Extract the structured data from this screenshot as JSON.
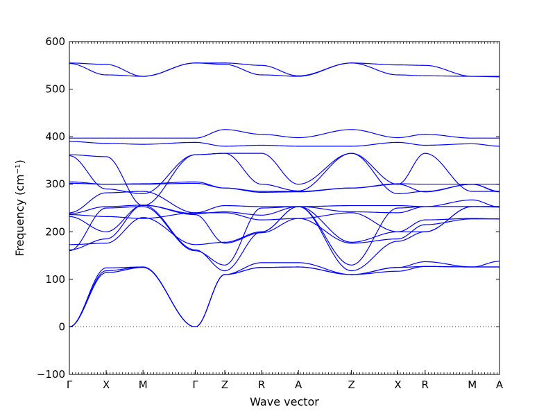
{
  "chart_data": {
    "type": "line",
    "xlabel": "Wave vector",
    "ylabel": "Frequency (cm⁻¹)",
    "ylim": [
      -100,
      600
    ],
    "y_ticks": [
      -100,
      0,
      100,
      200,
      300,
      400,
      500,
      600
    ],
    "zero_line": "dotted",
    "grid": false,
    "x_path_points": [
      "Γ",
      "X",
      "M",
      "Γ",
      "Z",
      "R",
      "A",
      "Z",
      "X",
      "R",
      "M",
      "A"
    ],
    "x_path_positions": [
      0.0,
      0.5,
      1.0,
      1.71,
      2.11,
      2.61,
      3.11,
      3.83,
      4.46,
      4.83,
      5.47,
      5.84
    ],
    "line_color": "#0000ff",
    "series": [
      {
        "x": [
          0,
          0.5,
          1,
          1.71,
          2.11,
          2.61,
          3.11,
          3.83,
          4.46,
          4.83,
          5.47,
          5.84
        ],
        "y": [
          555,
          552,
          527,
          555,
          555,
          550,
          528,
          555,
          551,
          550,
          527,
          527
        ]
      },
      {
        "x": [
          0,
          0.5,
          1,
          1.71,
          2.11,
          2.61,
          3.11,
          3.83,
          4.46,
          4.83,
          5.47,
          5.84
        ],
        "y": [
          554,
          530,
          527,
          555,
          552,
          530,
          527,
          555,
          530,
          528,
          527,
          526
        ]
      },
      {
        "x": [
          0,
          0.5,
          1,
          1.71,
          2.11,
          2.61,
          3.11,
          3.83,
          4.46,
          4.83,
          5.47,
          5.84
        ],
        "y": [
          397,
          397,
          397,
          397,
          415,
          405,
          398,
          415,
          398,
          405,
          397,
          397
        ]
      },
      {
        "x": [
          0,
          0.5,
          1,
          1.71,
          2.11,
          2.61,
          3.11,
          3.83,
          4.46,
          4.83,
          5.47,
          5.84
        ],
        "y": [
          390,
          386,
          384,
          388,
          380,
          382,
          380,
          380,
          388,
          382,
          385,
          380
        ]
      },
      {
        "x": [
          0,
          0.5,
          1,
          1.71,
          2.11,
          2.61,
          3.11,
          3.83,
          4.46,
          4.83,
          5.47,
          5.84
        ],
        "y": [
          362,
          358,
          255,
          362,
          365,
          365,
          300,
          365,
          300,
          365,
          285,
          285
        ]
      },
      {
        "x": [
          0,
          0.5,
          1,
          1.71,
          2.11,
          2.61,
          3.11,
          3.83,
          4.46,
          4.83,
          5.47,
          5.84
        ],
        "y": [
          360,
          290,
          280,
          362,
          365,
          300,
          286,
          365,
          280,
          285,
          300,
          285
        ]
      },
      {
        "x": [
          0,
          0.5,
          1,
          1.71,
          2.11,
          2.61,
          3.11,
          3.83,
          4.46,
          4.83,
          5.47,
          5.84
        ],
        "y": [
          305,
          300,
          301,
          305,
          292,
          285,
          285,
          292,
          301,
          300,
          300,
          300
        ]
      },
      {
        "x": [
          0,
          0.5,
          1,
          1.71,
          2.11,
          2.61,
          3.11,
          3.83,
          4.46,
          4.83,
          5.47,
          5.84
        ],
        "y": [
          302,
          300,
          300,
          302,
          292,
          283,
          284,
          292,
          300,
          284,
          300,
          284
        ]
      },
      {
        "x": [
          0,
          0.5,
          1,
          1.71,
          2.11,
          2.61,
          3.11,
          3.83,
          4.46,
          4.83,
          5.47,
          5.84
        ],
        "y": [
          240,
          282,
          285,
          240,
          255,
          253,
          253,
          255,
          255,
          253,
          253,
          253
        ]
      },
      {
        "x": [
          0,
          0.5,
          1,
          1.71,
          2.11,
          2.61,
          3.11,
          3.83,
          4.46,
          4.83,
          5.47,
          5.84
        ],
        "y": [
          238,
          253,
          256,
          238,
          242,
          235,
          253,
          242,
          240,
          253,
          267,
          252
        ]
      },
      {
        "x": [
          0,
          0.5,
          1,
          1.71,
          2.11,
          2.61,
          3.11,
          3.83,
          4.46,
          4.83,
          5.47,
          5.84
        ],
        "y": [
          236,
          232,
          228,
          240,
          240,
          225,
          228,
          240,
          200,
          225,
          228,
          227
        ]
      },
      {
        "x": [
          0,
          0.5,
          1,
          1.71,
          2.11,
          2.61,
          3.11,
          3.83,
          4.46,
          4.83,
          5.47,
          5.84
        ],
        "y": [
          232,
          200,
          256,
          236,
          176,
          198,
          228,
          176,
          185,
          215,
          227,
          227
        ]
      },
      {
        "x": [
          0,
          0.5,
          1,
          1.71,
          2.11,
          2.61,
          3.11,
          3.83,
          4.46,
          4.83,
          5.47,
          5.84
        ],
        "y": [
          173,
          176,
          230,
          173,
          178,
          200,
          253,
          178,
          200,
          200,
          253,
          252
        ]
      },
      {
        "x": [
          0,
          0.5,
          1,
          1.71,
          2.11,
          2.61,
          3.11,
          3.83,
          4.46,
          4.83,
          5.47,
          5.84
        ],
        "y": [
          162,
          185,
          256,
          162,
          118,
          200,
          253,
          118,
          180,
          200,
          253,
          253
        ]
      },
      {
        "x": [
          0,
          0.5,
          1,
          1.71,
          2.11,
          2.61,
          3.11,
          3.83,
          4.46,
          4.83,
          5.47,
          5.84
        ],
        "y": [
          160,
          250,
          253,
          160,
          130,
          250,
          253,
          130,
          250,
          253,
          253,
          253
        ]
      },
      {
        "x": [
          0,
          0.5,
          1,
          1.71,
          2.11,
          2.61,
          3.11,
          3.83,
          4.46,
          4.83,
          5.47,
          5.84
        ],
        "y": [
          0,
          124,
          126,
          0,
          110,
          125,
          126,
          110,
          117,
          127,
          126,
          126
        ]
      },
      {
        "x": [
          0,
          0.5,
          1,
          1.71,
          2.11,
          2.61,
          3.11,
          3.83,
          4.46,
          4.83,
          5.47,
          5.84
        ],
        "y": [
          0,
          118,
          126,
          0,
          110,
          125,
          126,
          110,
          125,
          127,
          126,
          126
        ]
      },
      {
        "x": [
          0,
          0.5,
          1,
          1.71,
          2.11,
          2.61,
          3.11,
          3.83,
          4.46,
          4.83,
          5.47,
          5.84
        ],
        "y": [
          0,
          114,
          125,
          0,
          110,
          135,
          135,
          110,
          125,
          137,
          126,
          138
        ]
      }
    ]
  }
}
